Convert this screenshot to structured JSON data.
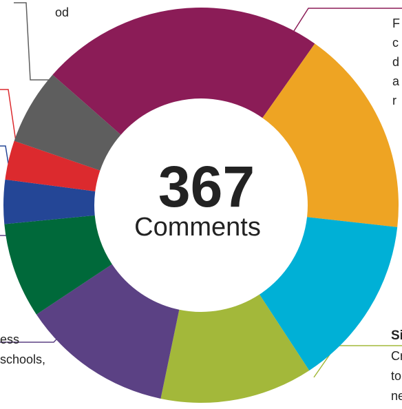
{
  "chart_data": {
    "type": "donut",
    "center_value": "367",
    "center_label": "Comments",
    "categories": [
      null,
      null,
      null,
      null,
      null,
      null,
      null,
      null,
      null
    ],
    "values": [
      23.3,
      17,
      14,
      12.5,
      12.4,
      7.8,
      3.6,
      3.2,
      6.2
    ],
    "colors": [
      "#8B1C57",
      "#EEA423",
      "#00B0D6",
      "#A3B83A",
      "#5B4184",
      "#00693A",
      "#244696",
      "#DC2A2E",
      "#5E5E5E"
    ],
    "annotations": {
      "top_left": [
        "od"
      ],
      "top_right": [
        "F",
        "c",
        "d",
        "a",
        "r"
      ],
      "bottom_right_title": "Si",
      "bottom_right": [
        "Cr",
        "to",
        "ne"
      ],
      "bottom_left": [
        "ess",
        "schools,"
      ]
    }
  }
}
